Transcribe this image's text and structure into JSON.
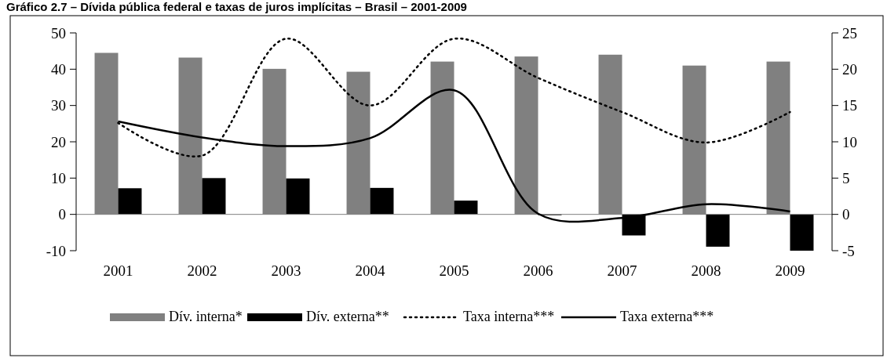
{
  "chart_data": {
    "type": "bar",
    "title": "Gráfico 2.7 – Dívida pública federal e taxas de juros implícitas – Brasil – 2001-2009",
    "categories": [
      "2001",
      "2002",
      "2003",
      "2004",
      "2005",
      "2006",
      "2007",
      "2008",
      "2009"
    ],
    "series": [
      {
        "name": "Dív. interna*",
        "color": "#808080",
        "values": [
          44.5,
          43.2,
          40.1,
          39.3,
          42.1,
          43.5,
          44.0,
          41.0,
          42.1
        ]
      },
      {
        "name": "Dív. externa**",
        "color": "#000000",
        "values": [
          7.2,
          10.0,
          9.9,
          7.3,
          3.8,
          -0.1,
          -5.8,
          -8.9,
          -10.0
        ]
      },
      {
        "name": "Taxa interna***",
        "type": "line",
        "axis": "y2",
        "line_style": "dotted",
        "color": "#000000",
        "values": [
          12.6,
          8.1,
          24.2,
          15.0,
          24.2,
          18.8,
          14.1,
          9.9,
          14.1
        ]
      },
      {
        "name": "Taxa externa***",
        "type": "line",
        "axis": "y2",
        "line_style": "solid",
        "color": "#000000",
        "values": [
          12.8,
          10.6,
          9.4,
          10.5,
          17.1,
          0.1,
          -0.5,
          1.4,
          0.4
        ]
      }
    ],
    "ylim": [
      -10,
      50
    ],
    "yticks": [
      -10,
      0,
      10,
      20,
      30,
      40,
      50
    ],
    "y2lim": [
      -5,
      25
    ],
    "y2ticks": [
      -5,
      0,
      5,
      10,
      15,
      20,
      25
    ],
    "legend": "bottom",
    "marker": "none"
  }
}
